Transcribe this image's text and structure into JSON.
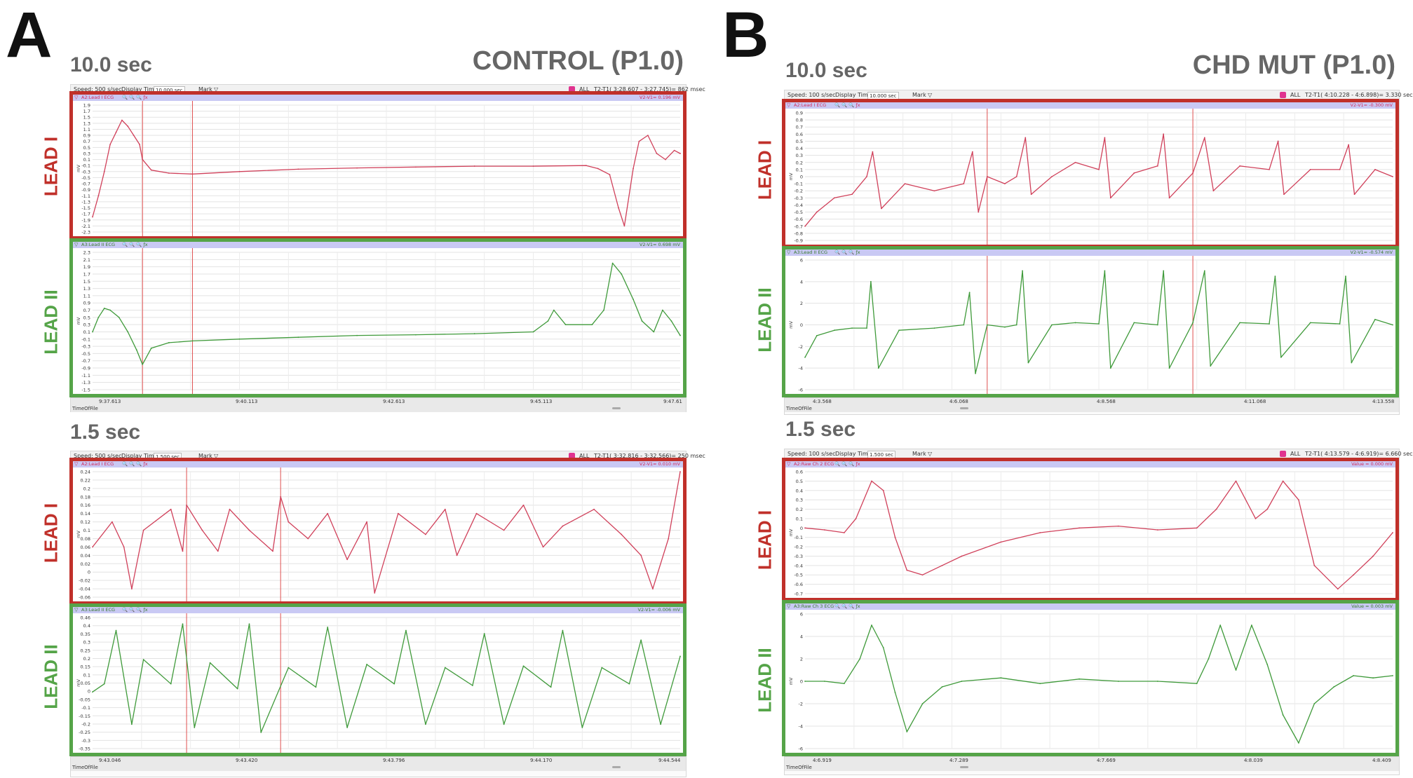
{
  "panels": {
    "a": {
      "letter": "A",
      "condition": "CONTROL (P1.0)",
      "top_duration": "10.0 sec",
      "bottom_duration": "1.5 sec"
    },
    "b": {
      "letter": "B",
      "condition": "CHD MUT (P1.0)",
      "top_duration": "10.0 sec",
      "bottom_duration": "1.5 sec"
    }
  },
  "lead_labels": {
    "lead1": "LEAD I",
    "lead2": "LEAD II"
  },
  "windows": {
    "a_top": {
      "speed": "Speed: 500 s/sec",
      "display_time_label": "Display Time:",
      "display_time": "10.000 sec",
      "mark": "Mark",
      "all": "ALL",
      "interval": "T2-T1( 3:28.607 - 3:27.745)= 862 msec",
      "axis_name": "TimeOfFile",
      "time_ticks": [
        "9:37.613",
        "9:40.113",
        "9:42.613",
        "9:45.113",
        "9:47.61"
      ],
      "ch1_name": "A2:Lead I  ECG",
      "ch1_value": "V2-V1= 0.196 mV",
      "ch2_name": "A3:Lead II  ECG",
      "ch2_value": "V2-V1= 0.698 mV"
    },
    "a_bottom": {
      "speed": "Speed: 500 s/sec",
      "display_time_label": "Display Time:",
      "display_time": "1.500 sec",
      "mark": "Mark",
      "all": "ALL",
      "interval": "T2-T1( 3:32.816 - 3:32.566)= 250 msec",
      "axis_name": "TimeOfFile",
      "time_ticks": [
        "9:43.046",
        "9:43.420",
        "9:43.796",
        "9:44.170",
        "9:44.544"
      ],
      "ch1_name": "A2:Lead I  ECG",
      "ch1_value": "V2-V1= 0.010 mV",
      "ch2_name": "A3:Lead II  ECG",
      "ch2_value": "V2-V1= -0.006 mV"
    },
    "b_top": {
      "speed": "Speed: 100 s/sec",
      "display_time_label": "Display Time:",
      "display_time": "10.000 sec",
      "mark": "Mark",
      "all": "ALL",
      "interval": "T2-T1( 4:10.228 - 4:6.898)= 3.330 sec",
      "axis_name": "TimeOfFile",
      "time_ticks": [
        "4:3.568",
        "4:6.068",
        "4:8.568",
        "4:11.068",
        "4:13.558"
      ],
      "ch1_name": "A2:Lead I  ECG",
      "ch1_value": "V2-V1= -0.300 mV",
      "ch2_name": "A3:Lead II  ECG",
      "ch2_value": "V2-V1= -0.574 mV"
    },
    "b_bottom": {
      "speed": "Speed: 100 s/sec",
      "display_time_label": "Display Time:",
      "display_time": "1.500 sec",
      "mark": "Mark",
      "all": "ALL",
      "interval": "T2-T1( 4:13.579 - 4:6.919)= 6.660 sec",
      "axis_name": "TimeOfFile",
      "time_ticks": [
        "4:6.919",
        "4:7.289",
        "4:7.669",
        "4:8.039",
        "4:8.409"
      ],
      "ch1_name": "A2:Raw Ch 2  ECG",
      "ch1_value": "Value = 0.000 mV",
      "ch2_name": "A3:Raw Ch 3  ECG",
      "ch2_value": "Value = 0.003 mV"
    }
  },
  "chart_data": [
    {
      "id": "a_top_lead1",
      "type": "line",
      "title": "CONTROL Lead I (10.0 sec)",
      "ylabel": "mV",
      "xlim": [
        0,
        10
      ],
      "ylim": [
        -2.3,
        1.9
      ],
      "yticks": [
        "1.9",
        "1.7",
        "1.5",
        "1.3",
        "1.1",
        "0.9",
        "0.7",
        "0.5",
        "0.3",
        "0.1",
        "-0.1",
        "-0.3",
        "-0.5",
        "-0.7",
        "-0.9",
        "-1.1",
        "-1.3",
        "-1.5",
        "-1.7",
        "-1.9",
        "-2.1",
        "-2.3"
      ],
      "cursors": [
        0.85,
        1.7
      ],
      "x": [
        0,
        0.1,
        0.2,
        0.3,
        0.4,
        0.5,
        0.6,
        0.7,
        0.8,
        0.85,
        1,
        1.3,
        1.7,
        2.5,
        3.5,
        4.5,
        5.5,
        6.5,
        7.5,
        8.4,
        8.6,
        8.8,
        8.95,
        9.05,
        9.2,
        9.3,
        9.45,
        9.6,
        9.75,
        9.9,
        10
      ],
      "values": [
        -1.8,
        -1.1,
        -0.3,
        0.6,
        1.0,
        1.4,
        1.2,
        0.9,
        0.6,
        0.1,
        -0.25,
        -0.35,
        -0.38,
        -0.3,
        -0.22,
        -0.18,
        -0.15,
        -0.12,
        -0.12,
        -0.1,
        -0.2,
        -0.4,
        -1.5,
        -2.1,
        -0.2,
        0.7,
        0.9,
        0.3,
        0.1,
        0.4,
        0.3
      ]
    },
    {
      "id": "a_top_lead2",
      "type": "line",
      "title": "CONTROL Lead II (10.0 sec)",
      "ylabel": "mV",
      "xlim": [
        0,
        10
      ],
      "ylim": [
        -1.5,
        2.3
      ],
      "yticks": [
        "2.3",
        "2.1",
        "1.9",
        "1.7",
        "1.5",
        "1.3",
        "1.1",
        "0.9",
        "0.7",
        "0.5",
        "0.3",
        "0.1",
        "-0.1",
        "-0.3",
        "-0.5",
        "-0.7",
        "-0.9",
        "-1.1",
        "-1.3",
        "-1.5"
      ],
      "cursors": [
        0.85,
        1.7
      ],
      "x": [
        0,
        0.1,
        0.2,
        0.3,
        0.45,
        0.6,
        0.75,
        0.85,
        1,
        1.3,
        1.7,
        2.5,
        3.5,
        4.5,
        5.5,
        6.5,
        7.5,
        7.75,
        7.85,
        8.05,
        8.5,
        8.7,
        8.85,
        9.0,
        9.2,
        9.35,
        9.55,
        9.7,
        9.85,
        10
      ],
      "values": [
        0.1,
        0.5,
        0.75,
        0.7,
        0.5,
        0.1,
        -0.4,
        -0.8,
        -0.35,
        -0.2,
        -0.15,
        -0.1,
        -0.05,
        0.0,
        0.02,
        0.05,
        0.1,
        0.4,
        0.7,
        0.3,
        0.3,
        0.7,
        2.0,
        1.7,
        1.0,
        0.4,
        0.1,
        0.7,
        0.4,
        0.0
      ]
    },
    {
      "id": "a_bottom_lead1",
      "type": "line",
      "title": "CONTROL Lead I (1.5 sec)",
      "ylabel": "mV",
      "xlim": [
        0,
        1.5
      ],
      "ylim": [
        -0.06,
        0.24
      ],
      "yticks": [
        "0.24",
        "0.22",
        "0.2",
        "0.18",
        "0.16",
        "0.14",
        "0.12",
        "0.1",
        "0.08",
        "0.06",
        "0.04",
        "0.02",
        "0",
        "-0.02",
        "-0.04",
        "-0.06"
      ],
      "cursors": [
        0.24,
        0.48
      ],
      "x": [
        0,
        0.05,
        0.08,
        0.1,
        0.13,
        0.2,
        0.23,
        0.24,
        0.28,
        0.32,
        0.35,
        0.4,
        0.46,
        0.48,
        0.5,
        0.55,
        0.6,
        0.65,
        0.7,
        0.72,
        0.78,
        0.85,
        0.9,
        0.93,
        0.98,
        1.05,
        1.1,
        1.15,
        1.2,
        1.28,
        1.35,
        1.4,
        1.43,
        1.47,
        1.5
      ],
      "values": [
        0.06,
        0.12,
        0.06,
        -0.04,
        0.1,
        0.15,
        0.05,
        0.16,
        0.1,
        0.05,
        0.15,
        0.1,
        0.05,
        0.18,
        0.12,
        0.08,
        0.14,
        0.03,
        0.12,
        -0.05,
        0.14,
        0.09,
        0.15,
        0.04,
        0.14,
        0.1,
        0.16,
        0.06,
        0.11,
        0.15,
        0.09,
        0.04,
        -0.04,
        0.08,
        0.24
      ]
    },
    {
      "id": "a_bottom_lead2",
      "type": "line",
      "title": "CONTROL Lead II (1.5 sec)",
      "ylabel": "mV",
      "xlim": [
        0,
        1.5
      ],
      "ylim": [
        -0.35,
        0.46
      ],
      "yticks": [
        "0.46",
        "0.4",
        "0.35",
        "0.3",
        "0.25",
        "0.2",
        "0.15",
        "0.1",
        "0.05",
        "0",
        "-0.05",
        "-0.1",
        "-0.15",
        "-0.2",
        "-0.25",
        "-0.3",
        "-0.35"
      ],
      "cursors": [
        0.24,
        0.48
      ],
      "x": [
        0,
        0.03,
        0.06,
        0.1,
        0.13,
        0.2,
        0.23,
        0.26,
        0.3,
        0.37,
        0.4,
        0.43,
        0.5,
        0.57,
        0.6,
        0.65,
        0.7,
        0.77,
        0.8,
        0.85,
        0.9,
        0.97,
        1.0,
        1.05,
        1.1,
        1.17,
        1.2,
        1.25,
        1.3,
        1.37,
        1.4,
        1.45,
        1.5
      ],
      "values": [
        0.0,
        0.05,
        0.38,
        -0.2,
        0.2,
        0.05,
        0.42,
        -0.22,
        0.18,
        0.02,
        0.42,
        -0.25,
        0.15,
        0.03,
        0.4,
        -0.22,
        0.17,
        0.05,
        0.38,
        -0.2,
        0.15,
        0.04,
        0.36,
        -0.2,
        0.16,
        0.03,
        0.38,
        -0.22,
        0.15,
        0.05,
        0.32,
        -0.2,
        0.22
      ]
    },
    {
      "id": "b_top_lead1",
      "type": "line",
      "title": "CHD MUT Lead I (10.0 sec)",
      "ylabel": "mV",
      "xlim": [
        0,
        10
      ],
      "ylim": [
        -0.9,
        0.9
      ],
      "yticks": [
        "0.9",
        "0.8",
        "0.7",
        "0.6",
        "0.5",
        "0.4",
        "0.3",
        "0.2",
        "0.1",
        "0",
        "-0.1",
        "-0.2",
        "-0.3",
        "-0.4",
        "-0.5",
        "-0.6",
        "-0.7",
        "-0.8",
        "-0.9"
      ],
      "cursors": [
        3.1,
        6.6
      ],
      "x": [
        0,
        0.2,
        0.5,
        0.8,
        1.05,
        1.15,
        1.3,
        1.7,
        2.2,
        2.7,
        2.85,
        2.95,
        3.1,
        3.4,
        3.6,
        3.75,
        3.85,
        4.2,
        4.6,
        5.0,
        5.1,
        5.2,
        5.6,
        6.0,
        6.1,
        6.2,
        6.6,
        6.8,
        6.95,
        7.4,
        7.9,
        8.05,
        8.15,
        8.6,
        9.1,
        9.25,
        9.35,
        9.7,
        10
      ],
      "values": [
        -0.7,
        -0.5,
        -0.3,
        -0.25,
        0.0,
        0.35,
        -0.45,
        -0.1,
        -0.2,
        -0.1,
        0.35,
        -0.5,
        0.0,
        -0.1,
        0.0,
        0.55,
        -0.25,
        0.0,
        0.2,
        0.1,
        0.55,
        -0.3,
        0.05,
        0.15,
        0.6,
        -0.3,
        0.05,
        0.55,
        -0.2,
        0.15,
        0.1,
        0.5,
        -0.25,
        0.1,
        0.1,
        0.45,
        -0.25,
        0.1,
        0.0
      ]
    },
    {
      "id": "b_top_lead2",
      "type": "line",
      "title": "CHD MUT Lead II (10.0 sec)",
      "ylabel": "mV",
      "xlim": [
        0,
        10
      ],
      "ylim": [
        -6,
        6
      ],
      "yticks": [
        "6",
        "4",
        "2",
        "0",
        "-2",
        "-4",
        "-6"
      ],
      "cursors": [
        3.1,
        6.6
      ],
      "x": [
        0,
        0.2,
        0.5,
        0.8,
        1.05,
        1.12,
        1.25,
        1.6,
        2.2,
        2.7,
        2.8,
        2.9,
        3.1,
        3.4,
        3.6,
        3.7,
        3.8,
        4.2,
        4.6,
        5.0,
        5.1,
        5.2,
        5.6,
        6.0,
        6.1,
        6.2,
        6.6,
        6.8,
        6.9,
        7.4,
        7.9,
        8.0,
        8.1,
        8.6,
        9.1,
        9.2,
        9.3,
        9.7,
        10
      ],
      "values": [
        -3,
        -1,
        -0.5,
        -0.3,
        -0.3,
        4.0,
        -4.0,
        -0.5,
        -0.3,
        0.0,
        3.0,
        -4.5,
        0.0,
        -0.2,
        0.0,
        5.0,
        -3.5,
        0.0,
        0.2,
        0.1,
        5.0,
        -4.0,
        0.2,
        0.0,
        5.0,
        -4.0,
        0.2,
        5.0,
        -3.8,
        0.2,
        0.1,
        4.5,
        -3.0,
        0.2,
        0.1,
        4.5,
        -3.5,
        0.5,
        0.0
      ]
    },
    {
      "id": "b_bottom_lead1",
      "type": "line",
      "title": "CHD MUT Lead I (1.5 sec)",
      "ylabel": "mV",
      "xlim": [
        0,
        1.5
      ],
      "ylim": [
        -0.7,
        0.6
      ],
      "yticks": [
        "0.6",
        "0.5",
        "0.4",
        "0.3",
        "0.2",
        "0.1",
        "0",
        "-0.1",
        "-0.2",
        "-0.3",
        "-0.4",
        "-0.5",
        "-0.6",
        "-0.7"
      ],
      "cursors": [],
      "x": [
        0,
        0.05,
        0.1,
        0.13,
        0.17,
        0.2,
        0.23,
        0.26,
        0.3,
        0.35,
        0.4,
        0.5,
        0.6,
        0.7,
        0.8,
        0.9,
        1.0,
        1.05,
        1.1,
        1.15,
        1.18,
        1.22,
        1.26,
        1.3,
        1.36,
        1.4,
        1.45,
        1.5
      ],
      "values": [
        0.0,
        -0.02,
        -0.05,
        0.1,
        0.5,
        0.4,
        -0.1,
        -0.45,
        -0.5,
        -0.4,
        -0.3,
        -0.15,
        -0.05,
        0.0,
        0.02,
        -0.02,
        0.0,
        0.2,
        0.5,
        0.1,
        0.2,
        0.5,
        0.3,
        -0.4,
        -0.65,
        -0.5,
        -0.3,
        -0.05
      ]
    },
    {
      "id": "b_bottom_lead2",
      "type": "line",
      "title": "CHD MUT Lead II (1.5 sec)",
      "ylabel": "mV",
      "xlim": [
        0,
        1.5
      ],
      "ylim": [
        -6,
        6
      ],
      "yticks": [
        "6",
        "4",
        "2",
        "0",
        "-2",
        "-4",
        "-6"
      ],
      "cursors": [],
      "x": [
        0,
        0.05,
        0.1,
        0.14,
        0.17,
        0.2,
        0.23,
        0.26,
        0.3,
        0.35,
        0.4,
        0.5,
        0.6,
        0.7,
        0.8,
        0.9,
        1.0,
        1.03,
        1.06,
        1.1,
        1.14,
        1.18,
        1.22,
        1.26,
        1.3,
        1.35,
        1.4,
        1.45,
        1.5
      ],
      "values": [
        0,
        0,
        -0.2,
        2.0,
        5.0,
        3.0,
        -1.0,
        -4.5,
        -2.0,
        -0.5,
        0.0,
        0.3,
        -0.2,
        0.2,
        0.0,
        0.0,
        -0.2,
        2.0,
        5.0,
        1.0,
        5.0,
        1.5,
        -3.0,
        -5.5,
        -2.0,
        -0.5,
        0.5,
        0.3,
        0.5
      ]
    }
  ]
}
